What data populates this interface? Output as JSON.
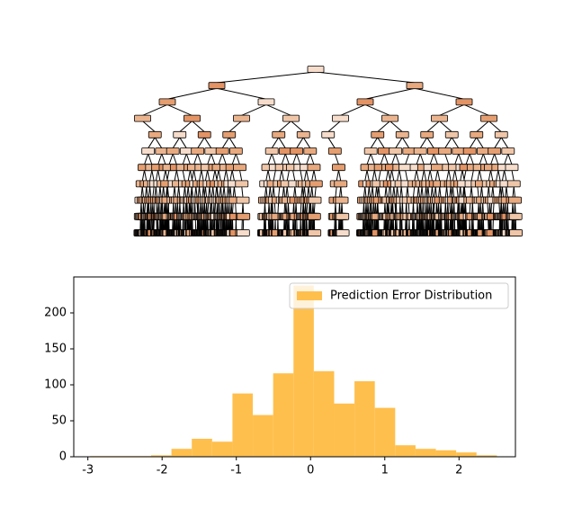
{
  "chart_data": {
    "type": "histogram",
    "bins": [
      -2.97,
      -2.696,
      -2.422,
      -2.148,
      -1.874,
      -1.6,
      -1.326,
      -1.052,
      -0.778,
      -0.504,
      -0.23,
      0.044,
      0.318,
      0.592,
      0.866,
      1.14,
      1.414,
      1.688,
      1.962,
      2.236,
      2.51
    ],
    "series": [
      {
        "name": "Prediction Error Distribution",
        "color": "#ffbf4d",
        "values": [
          1,
          1,
          1,
          2,
          11,
          25,
          21,
          88,
          58,
          116,
          238,
          119,
          74,
          105,
          68,
          16,
          11,
          9,
          6,
          2
        ]
      }
    ],
    "xlim": [
      -3.19,
      2.76
    ],
    "ylim": [
      0,
      250
    ],
    "xticks": [
      -3,
      -2,
      -1,
      0,
      1,
      2
    ],
    "yticks": [
      0,
      50,
      100,
      150,
      200
    ],
    "legend": "upper right"
  }
}
